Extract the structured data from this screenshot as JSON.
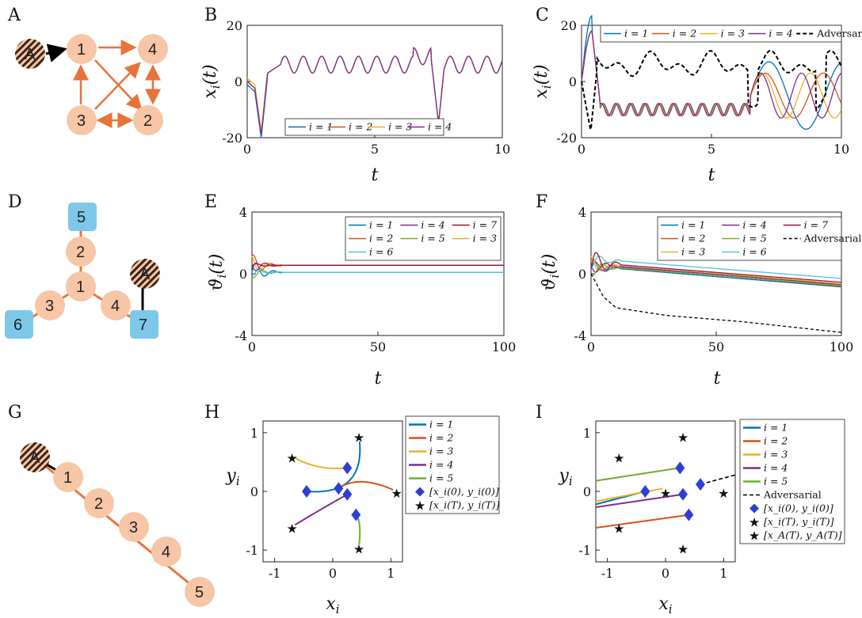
{
  "panels": {
    "A": {
      "label": "A"
    },
    "B": {
      "label": "B",
      "xlabel": "t",
      "ylabel": "x_i(t)",
      "xticks": [
        "0",
        "5",
        "10"
      ],
      "yticks": [
        "20",
        "0",
        "-20"
      ],
      "legend": [
        "i = 1",
        "i = 2",
        "i = 3",
        "i = 4"
      ]
    },
    "C": {
      "label": "C",
      "xlabel": "t",
      "ylabel": "x_i(t)",
      "xticks": [
        "0",
        "5",
        "10"
      ],
      "yticks": [
        "20",
        "0",
        "-20"
      ],
      "legend": [
        "i = 1",
        "i = 2",
        "i = 3",
        "i = 4",
        "Adversarial"
      ]
    },
    "D": {
      "label": "D"
    },
    "E": {
      "label": "E",
      "xlabel": "t",
      "ylabel": "ϑ_i(t)",
      "xticks": [
        "0",
        "50",
        "100"
      ],
      "yticks": [
        "4",
        "0",
        "-4"
      ],
      "legend": [
        "i = 1",
        "i = 4",
        "i = 7",
        "i = 2",
        "i = 5",
        "i = 3",
        "i = 6"
      ]
    },
    "F": {
      "label": "F",
      "xlabel": "t",
      "ylabel": "ϑ_i(t)",
      "xticks": [
        "0",
        "50",
        "100"
      ],
      "yticks": [
        "4",
        "0",
        "-4"
      ],
      "legend": [
        "i = 1",
        "i = 4",
        "i = 7",
        "i = 2",
        "i = 5",
        "Adversarial",
        "i = 3",
        "i = 6"
      ]
    },
    "G": {
      "label": "G"
    },
    "H": {
      "label": "H",
      "xlabel": "x_i",
      "ylabel": "y_i",
      "xticks": [
        "-1",
        "0",
        "1"
      ],
      "yticks": [
        "1",
        "0",
        "-1"
      ],
      "legend": [
        "i = 1",
        "i = 2",
        "i = 3",
        "i = 4",
        "i = 5",
        "[x_i(0), y_i(0)]",
        "[x_i(T), y_i(T)]"
      ]
    },
    "I": {
      "label": "I",
      "xlabel": "x_i",
      "ylabel": "y_i",
      "xticks": [
        "-1",
        "0",
        "1"
      ],
      "yticks": [
        "1",
        "0",
        "-1"
      ],
      "legend": [
        "i = 1",
        "i = 2",
        "i = 3",
        "i = 4",
        "i = 5",
        "Adversarial",
        "[x_i(0), y_i(0)]",
        "[x_i(T), y_i(T)]",
        "[x_A(T), y_A(T)]"
      ]
    }
  },
  "networks": {
    "A": {
      "nodes": [
        "A",
        "1",
        "2",
        "3",
        "4"
      ]
    },
    "D": {
      "nodes": [
        "A",
        "1",
        "2",
        "3",
        "4",
        "5",
        "6",
        "7"
      ]
    },
    "G": {
      "nodes": [
        "A",
        "1",
        "2",
        "3",
        "4",
        "5"
      ]
    }
  },
  "colors": {
    "s1": "#0072BD",
    "s2": "#D95319",
    "s3": "#EDB120",
    "s4": "#7E2F8E",
    "s5": "#77AC30",
    "s6": "#4DBEEE",
    "s7": "#A2142F",
    "node": "#F7C6A7",
    "edge": "#E8733A",
    "leaf": "#7DC8E8",
    "diamond": "#2D3FD6",
    "star": "#F0474E"
  },
  "chart_data": [
    {
      "panel": "B",
      "type": "line",
      "xlim": [
        0,
        10
      ],
      "ylim": [
        -20,
        20
      ],
      "series": [
        {
          "name": "i = 1"
        },
        {
          "name": "i = 2"
        },
        {
          "name": "i = 3"
        },
        {
          "name": "i = 4"
        }
      ],
      "x": [
        0,
        0.3,
        0.5,
        0.6,
        0.8,
        1.2,
        2,
        3,
        4,
        5,
        6,
        7,
        7.4,
        7.6,
        8.2,
        9,
        10
      ],
      "y": [
        0,
        -5,
        -19,
        -10,
        3,
        7,
        8,
        8,
        8,
        8,
        8,
        9,
        12,
        -16,
        5,
        9,
        7
      ]
    },
    {
      "panel": "C",
      "type": "line",
      "xlim": [
        0,
        10
      ],
      "ylim": [
        -20,
        20
      ],
      "series": [
        {
          "name": "i = 1"
        },
        {
          "name": "i = 2"
        },
        {
          "name": "i = 3"
        },
        {
          "name": "i = 4"
        },
        {
          "name": "Adversarial"
        }
      ]
    },
    {
      "panel": "E",
      "type": "line",
      "xlim": [
        0,
        100
      ],
      "ylim": [
        -4,
        4
      ],
      "series": [
        {
          "name": "i = 1",
          "final": 0.1
        },
        {
          "name": "i = 2",
          "final": 0.55
        },
        {
          "name": "i = 3",
          "final": 0.55
        },
        {
          "name": "i = 4",
          "final": 0.55
        },
        {
          "name": "i = 5",
          "final": 0.1
        },
        {
          "name": "i = 6",
          "final": 0.1
        },
        {
          "name": "i = 7",
          "final": 0.55
        }
      ]
    },
    {
      "panel": "F",
      "type": "line",
      "xlim": [
        0,
        100
      ],
      "ylim": [
        -4,
        4
      ],
      "series": [
        {
          "name": "i = 1"
        },
        {
          "name": "i = 2"
        },
        {
          "name": "i = 3"
        },
        {
          "name": "i = 4"
        },
        {
          "name": "i = 5"
        },
        {
          "name": "i = 6"
        },
        {
          "name": "i = 7"
        },
        {
          "name": "Adversarial",
          "x": [
            0,
            5,
            10,
            30,
            60,
            100
          ],
          "y": [
            0,
            -1.5,
            -2.2,
            -2.7,
            -3.1,
            -3.8
          ]
        }
      ]
    },
    {
      "panel": "H",
      "type": "scatter",
      "xlim": [
        -1.2,
        1.2
      ],
      "ylim": [
        -1.2,
        1.2
      ],
      "initial": [
        [
          -0.45,
          0
        ],
        [
          0.1,
          0.05
        ],
        [
          0.25,
          0.4
        ],
        [
          0.25,
          -0.05
        ],
        [
          0.4,
          -0.4
        ]
      ],
      "final": [
        [
          0.45,
          0.95
        ],
        [
          1.1,
          0
        ],
        [
          -0.7,
          0.6
        ],
        [
          -0.7,
          -0.6
        ],
        [
          0.45,
          -0.95
        ]
      ]
    },
    {
      "panel": "I",
      "type": "scatter",
      "xlim": [
        -1.2,
        1.2
      ],
      "ylim": [
        -1.2,
        1.2
      ],
      "initial": [
        [
          -0.35,
          0
        ],
        [
          0.25,
          0.4
        ],
        [
          0.3,
          -0.05
        ],
        [
          0.4,
          -0.4
        ],
        [
          0.6,
          0.12
        ]
      ],
      "final": [
        [
          0.3,
          0.95
        ],
        [
          1.0,
          0
        ],
        [
          -0.8,
          0.6
        ],
        [
          -0.8,
          -0.6
        ],
        [
          0.3,
          -0.95
        ]
      ],
      "adversary_final": [
        0,
        0
      ]
    }
  ]
}
